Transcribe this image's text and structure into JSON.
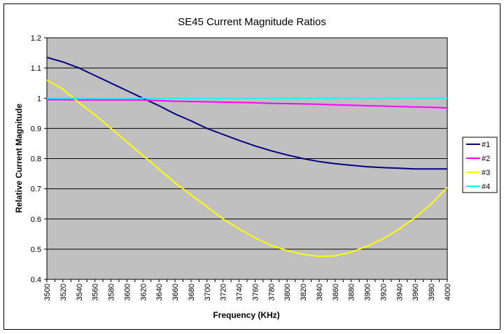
{
  "chart_data": {
    "type": "line",
    "title": "SE45 Current Magnitude Ratios",
    "xlabel": "Frequency (KHz)",
    "ylabel": "Relative Current Magnitude",
    "xlim": [
      3500,
      4000
    ],
    "ylim": [
      0.4,
      1.2
    ],
    "yticks": [
      "0.4",
      "0.5",
      "0.6",
      "0.7",
      "0.8",
      "0.9",
      "1",
      "1.1",
      "1.2"
    ],
    "xticks": [
      "3500",
      "3520",
      "3540",
      "3560",
      "3580",
      "3600",
      "3620",
      "3640",
      "3660",
      "3680",
      "3700",
      "3720",
      "3740",
      "3760",
      "3780",
      "3800",
      "3820",
      "3840",
      "3860",
      "3880",
      "3900",
      "3920",
      "3940",
      "3960",
      "3980",
      "4000"
    ],
    "grid": "horizontal major",
    "legend_position": "right",
    "plot_background": "#C0C0C0",
    "x": [
      3500,
      3520,
      3540,
      3560,
      3580,
      3600,
      3620,
      3640,
      3660,
      3680,
      3700,
      3720,
      3740,
      3760,
      3780,
      3800,
      3820,
      3840,
      3860,
      3880,
      3900,
      3920,
      3940,
      3960,
      3980,
      4000
    ],
    "series": [
      {
        "name": "#1",
        "color": "#000080",
        "values": [
          1.135,
          1.12,
          1.1,
          1.075,
          1.05,
          1.025,
          1.0,
          0.975,
          0.948,
          0.925,
          0.9,
          0.88,
          0.86,
          0.842,
          0.826,
          0.812,
          0.8,
          0.79,
          0.783,
          0.778,
          0.773,
          0.77,
          0.768,
          0.766,
          0.766,
          0.766
        ]
      },
      {
        "name": "#2",
        "color": "#FF00FF",
        "values": [
          0.995,
          0.995,
          0.994,
          0.994,
          0.994,
          0.994,
          0.994,
          0.992,
          0.99,
          0.989,
          0.988,
          0.987,
          0.986,
          0.985,
          0.983,
          0.982,
          0.981,
          0.98,
          0.978,
          0.977,
          0.975,
          0.974,
          0.972,
          0.971,
          0.97,
          0.968
        ]
      },
      {
        "name": "#3",
        "color": "#FFFF00",
        "values": [
          1.06,
          1.03,
          0.985,
          0.945,
          0.9,
          0.855,
          0.81,
          0.765,
          0.72,
          0.68,
          0.64,
          0.6,
          0.567,
          0.537,
          0.513,
          0.495,
          0.483,
          0.476,
          0.478,
          0.49,
          0.51,
          0.535,
          0.567,
          0.605,
          0.65,
          0.705
        ]
      },
      {
        "name": "#4",
        "color": "#00FFFF",
        "values": [
          1,
          1,
          1,
          1,
          1,
          1,
          1,
          1,
          1,
          1,
          1,
          1,
          1,
          1,
          1,
          1,
          1,
          1,
          1,
          1,
          1,
          1,
          1,
          1,
          1,
          1
        ]
      }
    ]
  }
}
